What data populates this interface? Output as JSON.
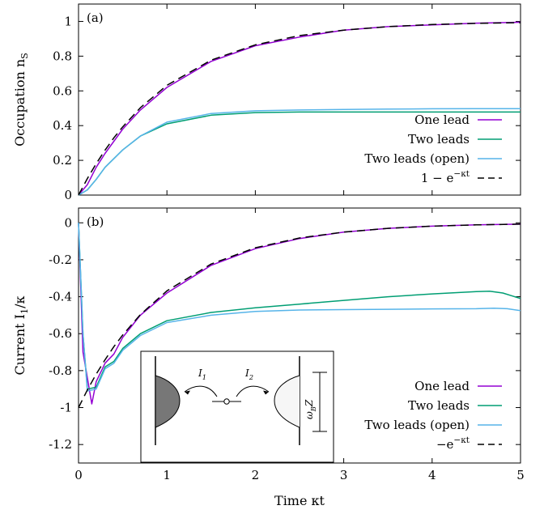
{
  "colors": {
    "one_lead": "#9400d3",
    "two_leads": "#009e73",
    "two_leads_open": "#56b4e9",
    "reference": "#000000"
  },
  "chart_data": [
    {
      "type": "line",
      "panel_label": "(a)",
      "ylabel": "Occupation n_S",
      "xlabel": "",
      "xlim": [
        0,
        5
      ],
      "ylim": [
        0,
        1.1
      ],
      "x_ticks": [
        0,
        1,
        2,
        3,
        4,
        5
      ],
      "x_tick_labels": [
        "",
        "",
        "",
        "",
        "",
        ""
      ],
      "y_ticks": [
        0,
        0.2,
        0.4,
        0.6,
        0.8,
        1
      ],
      "y_tick_labels": [
        "0",
        "0.2",
        "0.4",
        "0.6",
        "0.8",
        "1"
      ],
      "legend_position": "right",
      "series": [
        {
          "name": "One lead",
          "color_key": "one_lead",
          "dash": "",
          "x": [
            0,
            0.1,
            0.2,
            0.3,
            0.5,
            0.7,
            1,
            1.5,
            2,
            2.5,
            3,
            3.5,
            4,
            4.5,
            5
          ],
          "y": [
            0,
            0.06,
            0.16,
            0.24,
            0.38,
            0.49,
            0.62,
            0.77,
            0.86,
            0.91,
            0.95,
            0.97,
            0.98,
            0.99,
            0.995
          ]
        },
        {
          "name": "Two leads",
          "color_key": "two_leads",
          "dash": "",
          "x": [
            0,
            0.1,
            0.2,
            0.3,
            0.5,
            0.7,
            1,
            1.5,
            2,
            2.5,
            3,
            3.5,
            4,
            4.5,
            5
          ],
          "y": [
            0,
            0.03,
            0.09,
            0.16,
            0.26,
            0.34,
            0.41,
            0.46,
            0.475,
            0.478,
            0.478,
            0.478,
            0.478,
            0.478,
            0.478
          ]
        },
        {
          "name": "Two leads (open)",
          "color_key": "two_leads_open",
          "dash": "",
          "x": [
            0,
            0.1,
            0.2,
            0.3,
            0.5,
            0.7,
            1,
            1.5,
            2,
            2.5,
            3,
            3.5,
            4,
            4.5,
            5
          ],
          "y": [
            0,
            0.03,
            0.09,
            0.16,
            0.26,
            0.34,
            0.42,
            0.47,
            0.485,
            0.49,
            0.493,
            0.495,
            0.497,
            0.498,
            0.498
          ]
        },
        {
          "name": "1 − e^{−κt}",
          "color_key": "reference",
          "dash": "10,6",
          "x": [
            0,
            0.1,
            0.2,
            0.3,
            0.4,
            0.5,
            0.7,
            1,
            1.5,
            2,
            2.5,
            3,
            3.5,
            4,
            4.5,
            5
          ],
          "y": [
            0,
            0.095,
            0.181,
            0.259,
            0.33,
            0.393,
            0.503,
            0.632,
            0.777,
            0.865,
            0.918,
            0.95,
            0.97,
            0.982,
            0.989,
            0.993
          ]
        }
      ]
    },
    {
      "type": "line",
      "panel_label": "(b)",
      "ylabel": "Current I_1/κ",
      "xlabel": "Time κt",
      "xlim": [
        0,
        5
      ],
      "ylim": [
        -1.3,
        0.08
      ],
      "x_ticks": [
        0,
        1,
        2,
        3,
        4,
        5
      ],
      "x_tick_labels": [
        "0",
        "1",
        "2",
        "3",
        "4",
        "5"
      ],
      "y_ticks": [
        0,
        -0.2,
        -0.4,
        -0.6,
        -0.8,
        -1,
        -1.2
      ],
      "y_tick_labels": [
        "0",
        "-0.2",
        "-0.4",
        "-0.6",
        "-0.8",
        "-1",
        "-1.2"
      ],
      "legend_position": "bottom-right",
      "series": [
        {
          "name": "One lead",
          "color_key": "one_lead",
          "dash": "",
          "x": [
            0,
            0.05,
            0.15,
            0.2,
            0.3,
            0.4,
            0.5,
            0.7,
            1,
            1.5,
            2,
            2.5,
            3,
            3.5,
            4,
            4.5,
            5
          ],
          "y": [
            0,
            -0.7,
            -0.98,
            -0.86,
            -0.76,
            -0.71,
            -0.62,
            -0.5,
            -0.38,
            -0.23,
            -0.14,
            -0.085,
            -0.05,
            -0.03,
            -0.018,
            -0.011,
            -0.007
          ]
        },
        {
          "name": "Two leads",
          "color_key": "two_leads",
          "dash": "",
          "x": [
            0,
            0.05,
            0.1,
            0.2,
            0.3,
            0.4,
            0.5,
            0.7,
            1,
            1.5,
            2,
            2.5,
            3,
            3.5,
            4,
            4.5,
            4.65,
            4.8,
            5
          ],
          "y": [
            0,
            -0.6,
            -0.9,
            -0.89,
            -0.78,
            -0.75,
            -0.68,
            -0.6,
            -0.53,
            -0.485,
            -0.46,
            -0.44,
            -0.42,
            -0.4,
            -0.385,
            -0.372,
            -0.37,
            -0.38,
            -0.41
          ]
        },
        {
          "name": "Two leads (open)",
          "color_key": "two_leads_open",
          "dash": "",
          "x": [
            0,
            0.05,
            0.1,
            0.2,
            0.3,
            0.4,
            0.5,
            0.7,
            1,
            1.5,
            2,
            2.5,
            3,
            3.5,
            4,
            4.5,
            4.7,
            4.85,
            5
          ],
          "y": [
            0,
            -0.6,
            -0.91,
            -0.9,
            -0.79,
            -0.76,
            -0.69,
            -0.61,
            -0.54,
            -0.5,
            -0.48,
            -0.472,
            -0.47,
            -0.468,
            -0.466,
            -0.465,
            -0.462,
            -0.465,
            -0.475
          ]
        },
        {
          "name": "−e^{−κt}",
          "color_key": "reference",
          "dash": "10,6",
          "x": [
            0,
            0.1,
            0.2,
            0.3,
            0.4,
            0.5,
            0.7,
            1,
            1.5,
            2,
            2.5,
            3,
            3.5,
            4,
            4.5,
            5
          ],
          "y": [
            -1,
            -0.905,
            -0.819,
            -0.741,
            -0.67,
            -0.607,
            -0.497,
            -0.368,
            -0.223,
            -0.135,
            -0.082,
            -0.05,
            -0.03,
            -0.018,
            -0.011,
            -0.007
          ]
        }
      ]
    }
  ],
  "inset": {
    "label_i1": "I_1",
    "label_i2": "I_2",
    "label_omega": "ω_BZ"
  }
}
